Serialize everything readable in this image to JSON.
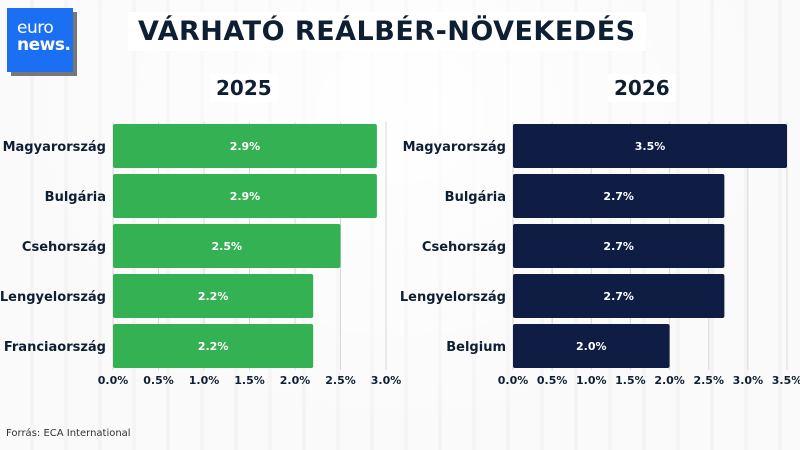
{
  "logo": {
    "line1": "euro",
    "line2": "news."
  },
  "title": "VÁRHATÓ REÁLBÉR-NÖVEKEDÉS",
  "source": "Forrás: ECA International",
  "colors": {
    "left": "#34b153",
    "right": "#0f1d45"
  },
  "chart_data": [
    {
      "type": "bar",
      "orientation": "horizontal",
      "title": "2025",
      "categories": [
        "Magyarország",
        "Bulgária",
        "Csehország",
        "Lengyelország",
        "Franciaország"
      ],
      "values": [
        2.9,
        2.9,
        2.5,
        2.2,
        2.2
      ],
      "labels": [
        "2.9%",
        "2.9%",
        "2.5%",
        "2.2%",
        "2.2%"
      ],
      "xlim": [
        0,
        3.0
      ],
      "ticks": [
        "0.0%",
        "0.5%",
        "1.0%",
        "1.5%",
        "2.0%",
        "2.5%",
        "3.0%"
      ]
    },
    {
      "type": "bar",
      "orientation": "horizontal",
      "title": "2026",
      "categories": [
        "Magyarország",
        "Bulgária",
        "Csehország",
        "Lengyelország",
        "Belgium"
      ],
      "values": [
        3.5,
        2.7,
        2.7,
        2.7,
        2.0
      ],
      "labels": [
        "3.5%",
        "2.7%",
        "2.7%",
        "2.7%",
        "2.0%"
      ],
      "xlim": [
        0,
        3.5
      ],
      "ticks": [
        "0.0%",
        "0.5%",
        "1.0%",
        "1.5%",
        "2.0%",
        "2.5%",
        "3.0%",
        "3.5%"
      ]
    }
  ]
}
